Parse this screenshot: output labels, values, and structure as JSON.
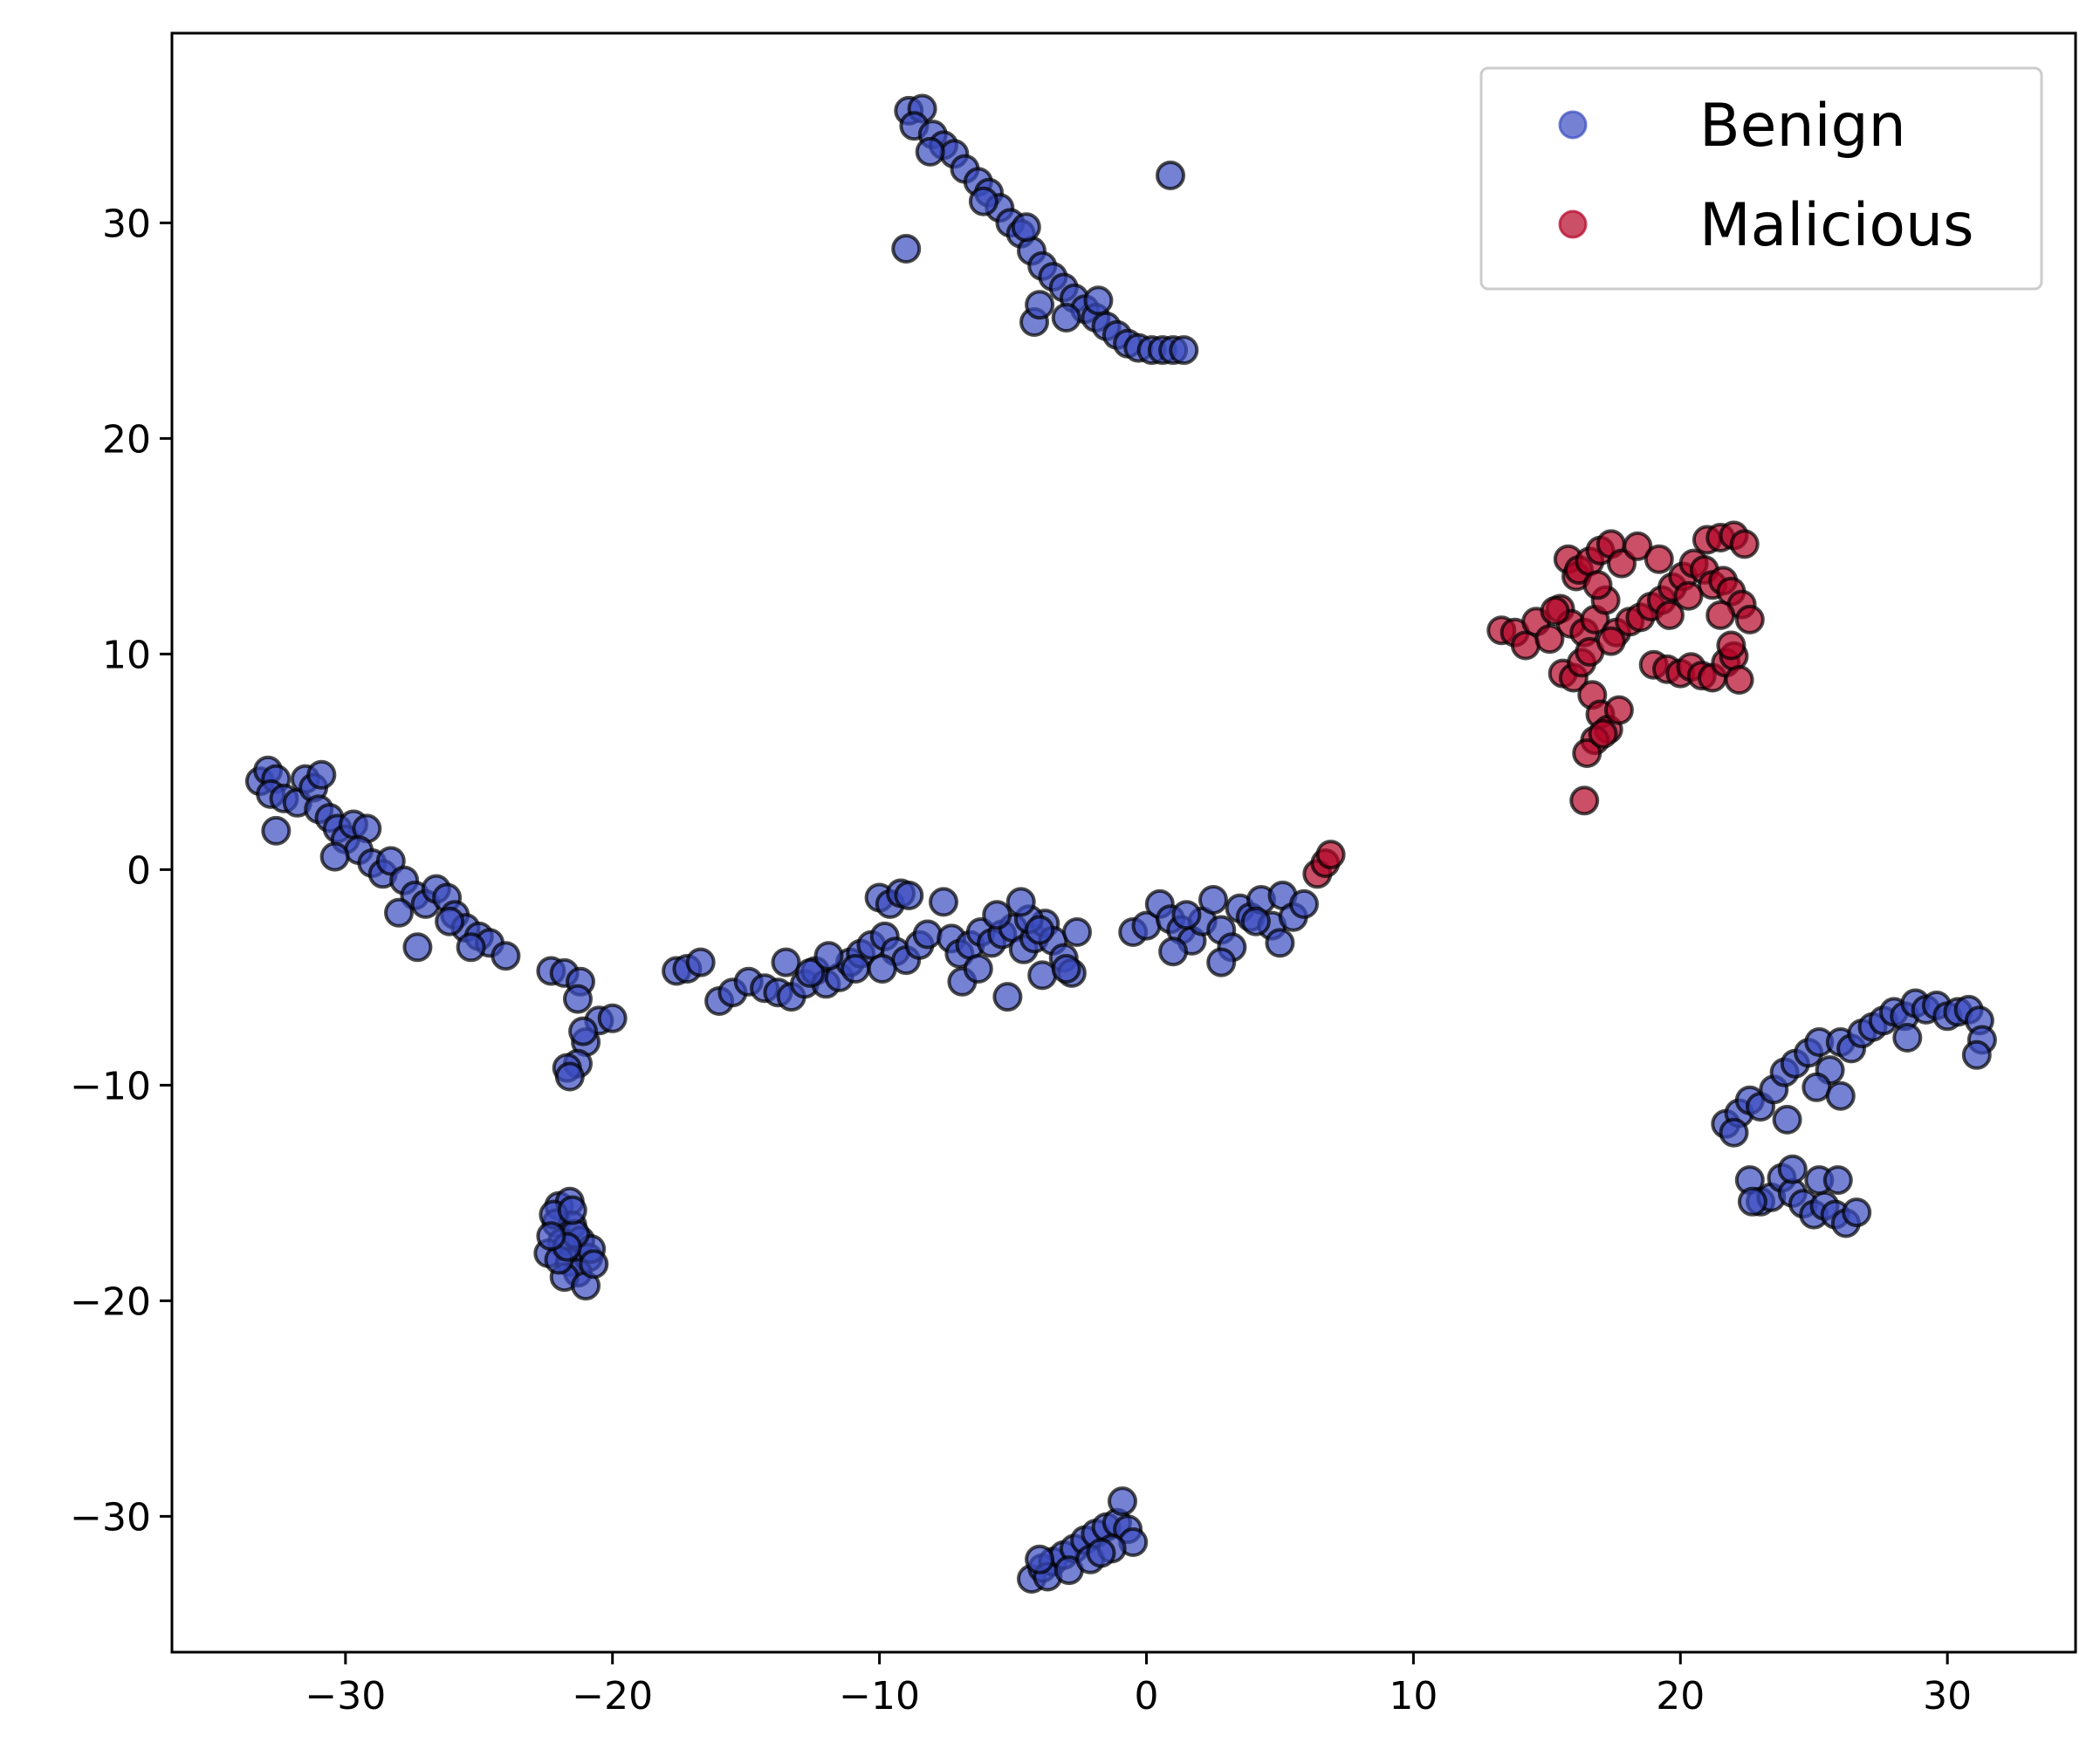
{
  "chart_data": {
    "type": "scatter",
    "title": "",
    "xlabel": "",
    "ylabel": "",
    "xlim": [
      -36.5,
      34.8
    ],
    "ylim": [
      -36.3,
      38.8
    ],
    "grid": false,
    "x_ticks": [
      -30,
      -20,
      -10,
      0,
      10,
      20,
      30
    ],
    "y_ticks": [
      -30,
      -20,
      -10,
      0,
      10,
      20,
      30
    ],
    "x_tick_labels": [
      "−30",
      "−20",
      "−10",
      "0",
      "10",
      "20",
      "30"
    ],
    "y_tick_labels": [
      "−30",
      "−20",
      "−10",
      "0",
      "10",
      "20",
      "30"
    ],
    "legend": {
      "position": "upper right",
      "entries": [
        {
          "label": "Benign",
          "color": "#3b4cc0"
        },
        {
          "label": "Malicious",
          "color": "#b40426"
        }
      ]
    },
    "marker_edge_color": "#000000",
    "marker_alpha": 0.7,
    "series": [
      {
        "name": "Benign",
        "color": "#3b4cc0",
        "points": [
          [
            -33.2,
            4.1
          ],
          [
            -32.9,
            4.6
          ],
          [
            -32.6,
            4.2
          ],
          [
            -32.8,
            3.5
          ],
          [
            -32.3,
            3.3
          ],
          [
            -31.8,
            3.1
          ],
          [
            -31.5,
            4.2
          ],
          [
            -31.2,
            3.8
          ],
          [
            -30.9,
            4.4
          ],
          [
            -31.0,
            2.8
          ],
          [
            -30.6,
            2.4
          ],
          [
            -30.3,
            1.9
          ],
          [
            -30.0,
            1.4
          ],
          [
            -29.7,
            2.1
          ],
          [
            -29.2,
            1.9
          ],
          [
            -29.5,
            0.9
          ],
          [
            -29.0,
            0.3
          ],
          [
            -28.6,
            -0.2
          ],
          [
            -28.3,
            0.4
          ],
          [
            -27.8,
            -0.5
          ],
          [
            -27.4,
            -1.2
          ],
          [
            -27.0,
            -1.6
          ],
          [
            -26.6,
            -0.9
          ],
          [
            -26.2,
            -1.3
          ],
          [
            -25.9,
            -2.1
          ],
          [
            -25.5,
            -2.7
          ],
          [
            -25.0,
            -3.1
          ],
          [
            -24.6,
            -3.4
          ],
          [
            -25.3,
            -3.6
          ],
          [
            -26.1,
            -2.4
          ],
          [
            -27.3,
            -3.6
          ],
          [
            -28.0,
            -2.0
          ],
          [
            -32.6,
            1.8
          ],
          [
            -30.4,
            0.6
          ],
          [
            -24.0,
            -4.0
          ],
          [
            -22.3,
            -4.7
          ],
          [
            -21.8,
            -4.8
          ],
          [
            -21.2,
            -5.2
          ],
          [
            -21.3,
            -6.0
          ],
          [
            -20.5,
            -7.0
          ],
          [
            -20.0,
            -6.9
          ],
          [
            -21.0,
            -8.0
          ],
          [
            -21.3,
            -9.0
          ],
          [
            -21.7,
            -9.2
          ],
          [
            -21.6,
            -9.6
          ],
          [
            -21.1,
            -7.5
          ],
          [
            -22.0,
            -15.6
          ],
          [
            -21.6,
            -15.4
          ],
          [
            -22.1,
            -16.4
          ],
          [
            -21.5,
            -16.5
          ],
          [
            -21.9,
            -17.3
          ],
          [
            -21.2,
            -17.2
          ],
          [
            -22.4,
            -17.8
          ],
          [
            -21.6,
            -18.2
          ],
          [
            -20.9,
            -18.0
          ],
          [
            -21.3,
            -18.7
          ],
          [
            -21.8,
            -18.9
          ],
          [
            -21.0,
            -19.3
          ],
          [
            -22.2,
            -16.0
          ],
          [
            -20.8,
            -17.6
          ],
          [
            -21.4,
            -16.9
          ],
          [
            -22.0,
            -18.1
          ],
          [
            -21.7,
            -17.5
          ],
          [
            -22.3,
            -17.0
          ],
          [
            -20.7,
            -18.3
          ],
          [
            -21.5,
            -15.8
          ],
          [
            -17.6,
            -4.7
          ],
          [
            -17.2,
            -4.6
          ],
          [
            -16.7,
            -4.3
          ],
          [
            -16.0,
            -6.1
          ],
          [
            -15.5,
            -5.7
          ],
          [
            -14.9,
            -5.2
          ],
          [
            -14.3,
            -5.5
          ],
          [
            -13.8,
            -5.7
          ],
          [
            -13.3,
            -5.9
          ],
          [
            -12.8,
            -5.3
          ],
          [
            -12.4,
            -4.7
          ],
          [
            -12.0,
            -5.3
          ],
          [
            -11.5,
            -5.0
          ],
          [
            -11.1,
            -4.3
          ],
          [
            -10.7,
            -3.9
          ],
          [
            -10.3,
            -3.5
          ],
          [
            -9.8,
            -3.1
          ],
          [
            -9.4,
            -3.8
          ],
          [
            -9.0,
            -4.2
          ],
          [
            -8.5,
            -3.5
          ],
          [
            -8.2,
            -3.0
          ],
          [
            -13.5,
            -4.3
          ],
          [
            -12.6,
            -4.8
          ],
          [
            -10.9,
            -4.6
          ],
          [
            -10.0,
            -1.3
          ],
          [
            -9.6,
            -1.6
          ],
          [
            -9.2,
            -1.1
          ],
          [
            -8.9,
            -1.2
          ],
          [
            -9.9,
            -4.6
          ],
          [
            -11.9,
            -4.0
          ],
          [
            -7.6,
            -1.5
          ],
          [
            -7.3,
            -3.2
          ],
          [
            -7.0,
            -3.9
          ],
          [
            -6.6,
            -3.5
          ],
          [
            -6.2,
            -2.9
          ],
          [
            -5.8,
            -3.4
          ],
          [
            -5.4,
            -3.0
          ],
          [
            -5.0,
            -2.7
          ],
          [
            -4.6,
            -3.7
          ],
          [
            -4.2,
            -3.2
          ],
          [
            -3.8,
            -2.5
          ],
          [
            -3.5,
            -3.3
          ],
          [
            -3.1,
            -4.1
          ],
          [
            -2.8,
            -4.8
          ],
          [
            -2.6,
            -2.9
          ],
          [
            -3.9,
            -4.9
          ],
          [
            -4.4,
            -2.3
          ],
          [
            -4.7,
            -1.5
          ],
          [
            -5.2,
            -5.9
          ],
          [
            -6.9,
            -5.2
          ],
          [
            -6.3,
            -4.6
          ],
          [
            -3.0,
            -4.6
          ],
          [
            -5.6,
            -2.1
          ],
          [
            -4.0,
            -2.8
          ],
          [
            -0.5,
            -2.9
          ],
          [
            0.0,
            -2.6
          ],
          [
            0.5,
            -1.6
          ],
          [
            0.9,
            -2.3
          ],
          [
            1.3,
            -2.8
          ],
          [
            1.7,
            -3.3
          ],
          [
            2.1,
            -2.4
          ],
          [
            2.5,
            -1.4
          ],
          [
            2.8,
            -2.8
          ],
          [
            3.2,
            -3.6
          ],
          [
            3.5,
            -1.8
          ],
          [
            3.9,
            -2.2
          ],
          [
            4.3,
            -1.4
          ],
          [
            4.7,
            -2.6
          ],
          [
            5.1,
            -1.2
          ],
          [
            5.5,
            -2.2
          ],
          [
            5.9,
            -1.6
          ],
          [
            2.8,
            -4.3
          ],
          [
            1.0,
            -3.8
          ],
          [
            5.0,
            -3.4
          ],
          [
            4.1,
            -2.4
          ],
          [
            1.5,
            -2.1
          ],
          [
            -8.9,
            35.2
          ],
          [
            -8.4,
            35.3
          ],
          [
            -8.7,
            34.5
          ],
          [
            -8.0,
            34.1
          ],
          [
            -7.6,
            33.6
          ],
          [
            -7.2,
            33.2
          ],
          [
            -6.8,
            32.5
          ],
          [
            -6.3,
            31.9
          ],
          [
            -5.9,
            31.4
          ],
          [
            -5.5,
            30.7
          ],
          [
            -5.1,
            30.0
          ],
          [
            -4.7,
            29.5
          ],
          [
            -4.3,
            28.7
          ],
          [
            -3.9,
            28.0
          ],
          [
            -3.5,
            27.5
          ],
          [
            -3.1,
            27.0
          ],
          [
            -2.7,
            26.5
          ],
          [
            -2.3,
            26.0
          ],
          [
            -1.9,
            25.6
          ],
          [
            -1.5,
            25.2
          ],
          [
            -1.1,
            24.8
          ],
          [
            -0.7,
            24.4
          ],
          [
            -0.3,
            24.2
          ],
          [
            0.2,
            24.1
          ],
          [
            0.6,
            24.1
          ],
          [
            1.0,
            24.1
          ],
          [
            1.4,
            24.1
          ],
          [
            -4.2,
            25.4
          ],
          [
            -4.0,
            26.2
          ],
          [
            -3.0,
            25.6
          ],
          [
            -8.1,
            33.3
          ],
          [
            -6.1,
            31.0
          ],
          [
            -4.5,
            29.8
          ],
          [
            -1.8,
            26.4
          ],
          [
            -9.0,
            28.8
          ],
          [
            0.9,
            32.2
          ],
          [
            21.7,
            -11.8
          ],
          [
            22.2,
            -11.3
          ],
          [
            22.6,
            -10.7
          ],
          [
            23.0,
            -11.0
          ],
          [
            23.5,
            -10.2
          ],
          [
            23.9,
            -9.4
          ],
          [
            24.3,
            -9.0
          ],
          [
            24.8,
            -8.5
          ],
          [
            25.2,
            -8.0
          ],
          [
            25.6,
            -9.3
          ],
          [
            26.0,
            -8.0
          ],
          [
            26.4,
            -8.3
          ],
          [
            26.8,
            -7.6
          ],
          [
            27.2,
            -7.3
          ],
          [
            27.6,
            -7.0
          ],
          [
            28.0,
            -6.6
          ],
          [
            28.4,
            -6.8
          ],
          [
            28.8,
            -6.2
          ],
          [
            29.2,
            -6.5
          ],
          [
            29.6,
            -6.3
          ],
          [
            30.0,
            -6.8
          ],
          [
            30.4,
            -6.6
          ],
          [
            30.8,
            -6.5
          ],
          [
            31.2,
            -7.0
          ],
          [
            31.3,
            -7.9
          ],
          [
            31.1,
            -8.6
          ],
          [
            22.0,
            -12.2
          ],
          [
            24.0,
            -11.6
          ],
          [
            25.1,
            -10.1
          ],
          [
            26.0,
            -10.5
          ],
          [
            28.5,
            -7.8
          ],
          [
            22.6,
            -14.4
          ],
          [
            23.0,
            -15.4
          ],
          [
            23.4,
            -15.2
          ],
          [
            23.8,
            -14.3
          ],
          [
            24.2,
            -15.0
          ],
          [
            24.6,
            -15.5
          ],
          [
            25.0,
            -16.0
          ],
          [
            25.4,
            -15.6
          ],
          [
            25.8,
            -16.0
          ],
          [
            26.2,
            -16.4
          ],
          [
            26.6,
            -15.9
          ],
          [
            24.2,
            -13.9
          ],
          [
            25.2,
            -14.4
          ],
          [
            25.9,
            -14.4
          ],
          [
            22.7,
            -15.4
          ],
          [
            -4.3,
            -32.9
          ],
          [
            -3.9,
            -32.4
          ],
          [
            -3.5,
            -32.1
          ],
          [
            -3.1,
            -31.8
          ],
          [
            -2.7,
            -31.5
          ],
          [
            -2.3,
            -31.1
          ],
          [
            -1.9,
            -30.8
          ],
          [
            -1.5,
            -30.5
          ],
          [
            -1.1,
            -30.3
          ],
          [
            -0.7,
            -30.6
          ],
          [
            -0.5,
            -31.2
          ],
          [
            -0.9,
            -29.3
          ],
          [
            -3.7,
            -32.8
          ],
          [
            -2.9,
            -32.5
          ],
          [
            -2.1,
            -32.0
          ],
          [
            -1.3,
            -31.5
          ],
          [
            -4.0,
            -32.0
          ],
          [
            -1.7,
            -31.7
          ]
        ]
      },
      {
        "name": "Malicious",
        "color": "#b40426",
        "points": [
          [
            13.3,
            11.1
          ],
          [
            13.8,
            11.0
          ],
          [
            14.2,
            10.4
          ],
          [
            14.6,
            11.5
          ],
          [
            15.1,
            10.7
          ],
          [
            15.5,
            12.1
          ],
          [
            15.8,
            14.4
          ],
          [
            16.1,
            13.6
          ],
          [
            16.2,
            13.9
          ],
          [
            16.6,
            14.3
          ],
          [
            17.0,
            14.8
          ],
          [
            17.4,
            15.1
          ],
          [
            17.8,
            14.2
          ],
          [
            15.9,
            11.4
          ],
          [
            16.4,
            11.0
          ],
          [
            16.8,
            11.6
          ],
          [
            17.2,
            12.5
          ],
          [
            17.6,
            11.0
          ],
          [
            18.1,
            11.5
          ],
          [
            18.5,
            11.7
          ],
          [
            18.9,
            12.2
          ],
          [
            19.3,
            12.5
          ],
          [
            19.7,
            13.1
          ],
          [
            20.1,
            13.6
          ],
          [
            20.5,
            14.2
          ],
          [
            20.9,
            13.9
          ],
          [
            21.2,
            13.2
          ],
          [
            21.6,
            13.4
          ],
          [
            21.9,
            12.9
          ],
          [
            22.3,
            12.3
          ],
          [
            22.6,
            11.6
          ],
          [
            21.0,
            15.3
          ],
          [
            21.5,
            15.4
          ],
          [
            22.0,
            15.5
          ],
          [
            22.4,
            15.1
          ],
          [
            19.0,
            9.5
          ],
          [
            19.5,
            9.3
          ],
          [
            20.0,
            9.1
          ],
          [
            20.4,
            9.4
          ],
          [
            20.8,
            9.0
          ],
          [
            21.2,
            8.9
          ],
          [
            21.7,
            9.6
          ],
          [
            22.0,
            9.9
          ],
          [
            22.2,
            8.8
          ],
          [
            15.6,
            9.1
          ],
          [
            16.0,
            8.9
          ],
          [
            16.3,
            9.6
          ],
          [
            16.6,
            10.1
          ],
          [
            16.7,
            8.1
          ],
          [
            17.0,
            7.2
          ],
          [
            17.3,
            6.5
          ],
          [
            17.7,
            7.4
          ],
          [
            16.8,
            6.0
          ],
          [
            16.5,
            5.4
          ],
          [
            17.1,
            6.3
          ],
          [
            16.4,
            3.2
          ],
          [
            6.4,
            -0.2
          ],
          [
            6.7,
            0.3
          ],
          [
            6.9,
            0.7
          ],
          [
            19.6,
            11.8
          ],
          [
            18.4,
            15.0
          ],
          [
            21.9,
            10.4
          ],
          [
            20.3,
            12.7
          ],
          [
            17.4,
            10.6
          ],
          [
            15.3,
            12.0
          ],
          [
            19.2,
            14.4
          ],
          [
            16.9,
            13.2
          ],
          [
            21.5,
            11.8
          ]
        ]
      }
    ]
  }
}
